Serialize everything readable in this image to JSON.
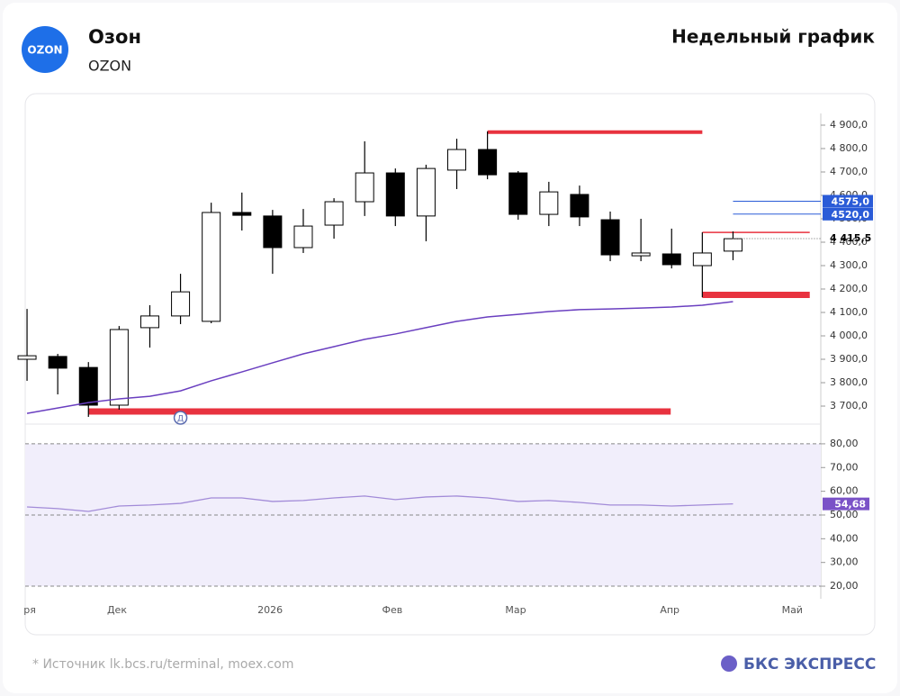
{
  "header": {
    "logo": "OZON",
    "name": "Озон",
    "ticker": "OZON",
    "period": "Недельный график"
  },
  "footer": {
    "source": "* Источник lk.bcs.ru/terminal, moex.com",
    "brand": "БКС ЭКСПРЕСС"
  },
  "chart_data": [
    {
      "type": "candlestick",
      "x": [
        0,
        1,
        2,
        3,
        4,
        5,
        6,
        7,
        8,
        9,
        10,
        11,
        12,
        13,
        14,
        15,
        16,
        17,
        18,
        19,
        20,
        21,
        22,
        23
      ],
      "open": [
        3900,
        3912,
        3865,
        3704,
        4035,
        4085,
        4062,
        4527,
        4512,
        4377,
        4473,
        4573,
        4696,
        4512,
        4708,
        4796,
        4696,
        4519,
        4604,
        4496,
        4342,
        4350,
        4300,
        4362
      ],
      "high": [
        4115,
        3923,
        3888,
        4042,
        4131,
        4265,
        4569,
        4612,
        4538,
        4542,
        4588,
        4831,
        4715,
        4731,
        4842,
        4873,
        4704,
        4658,
        4642,
        4531,
        4500,
        4458,
        4442,
        4446
      ],
      "low": [
        3808,
        3750,
        3654,
        3685,
        3950,
        4050,
        4054,
        4450,
        4265,
        4354,
        4415,
        4512,
        4469,
        4404,
        4627,
        4669,
        4496,
        4469,
        4469,
        4319,
        4319,
        4288,
        4165,
        4323
      ],
      "close": [
        3915,
        3862,
        3704,
        4027,
        4085,
        4188,
        4527,
        4515,
        4377,
        4469,
        4573,
        4696,
        4512,
        4715,
        4796,
        4688,
        4519,
        4615,
        4508,
        4346,
        4354,
        4304,
        4354,
        4415
      ],
      "ma": {
        "color": "#6a3fc0",
        "values": [
          3669,
          3692,
          3715,
          3731,
          3742,
          3765,
          3808,
          3846,
          3885,
          3923,
          3954,
          3985,
          4008,
          4035,
          4062,
          4081,
          4092,
          4104,
          4112,
          4115,
          4119,
          4123,
          4131,
          4146
        ]
      },
      "xlim": [
        -0.06,
        25.86
      ],
      "ylim": [
        3627,
        4950
      ],
      "xticks": [
        {
          "value": 0.09,
          "label": "ря"
        },
        {
          "value": 2.93,
          "label": "Дек"
        },
        {
          "value": 7.92,
          "label": "2026"
        },
        {
          "value": 11.9,
          "label": "Фев"
        },
        {
          "value": 15.92,
          "label": "Мар"
        },
        {
          "value": 20.94,
          "label": "Апр"
        },
        {
          "value": 24.93,
          "label": "Май"
        }
      ],
      "yticks": [
        {
          "value": 4900,
          "label": "4 900,0"
        },
        {
          "value": 4800,
          "label": "4 800,0"
        },
        {
          "value": 4700,
          "label": "4 700,0"
        },
        {
          "value": 4600,
          "label": "4 600,0"
        },
        {
          "value": 4500,
          "label": "4 500,0"
        },
        {
          "value": 4400,
          "label": "4 400,0"
        },
        {
          "value": 4300,
          "label": "4 300,0"
        },
        {
          "value": 4200,
          "label": "4 200,0"
        },
        {
          "value": 4100,
          "label": "4 100,0"
        },
        {
          "value": 4000,
          "label": "4 000,0"
        },
        {
          "value": 3900,
          "label": "3 900,0"
        },
        {
          "value": 3800,
          "label": "3 800,0"
        },
        {
          "value": 3700,
          "label": "3 700,0"
        }
      ],
      "levels": [
        {
          "value": 4870,
          "from": 15,
          "to": 22,
          "color": "#e8323f",
          "width": 4
        },
        {
          "value": 4442,
          "from": 22,
          "to": 25.5,
          "color": "#e8323f",
          "width": 1.5
        },
        {
          "value": 4175,
          "from": 22,
          "to": 25.5,
          "color": "#e8323f",
          "width": 7
        },
        {
          "value": 3677,
          "from": 2,
          "to": 20.97,
          "color": "#e8323f",
          "width": 7
        },
        {
          "value": 4575,
          "from": 23,
          "to": 25.86,
          "color": "#2a5bd7",
          "width": 1,
          "label": "4575,0"
        },
        {
          "value": 4520,
          "from": 23,
          "to": 25.86,
          "color": "#2a5bd7",
          "width": 1,
          "label": "4520,0"
        }
      ],
      "last_price": {
        "value": 4415.5,
        "label": "4 415,5"
      },
      "marker": {
        "x": 5,
        "label": "Д"
      }
    },
    {
      "type": "line",
      "x": [
        0,
        1,
        2,
        3,
        4,
        5,
        6,
        7,
        8,
        9,
        10,
        11,
        12,
        13,
        14,
        15,
        16,
        17,
        18,
        19,
        20,
        21,
        22,
        23
      ],
      "values": [
        53.4,
        52.7,
        51.5,
        53.8,
        54.2,
        54.9,
        57.2,
        57.2,
        55.7,
        56.1,
        57.2,
        58.0,
        56.5,
        57.6,
        58.0,
        57.2,
        55.7,
        56.1,
        55.3,
        54.2,
        54.2,
        53.8,
        54.2,
        54.68
      ],
      "value_labels": [
        null,
        null,
        null,
        null,
        null,
        null,
        null,
        null,
        null,
        null,
        null,
        null,
        null,
        null,
        null,
        null,
        null,
        null,
        null,
        null,
        null,
        null,
        null,
        "54,68"
      ],
      "color": "#a28bd8",
      "xlim": [
        -0.06,
        25.86
      ],
      "ylim": [
        14.7,
        86.8
      ],
      "yticks": [
        {
          "value": 80,
          "label": "80,00"
        },
        {
          "value": 70,
          "label": "70,00"
        },
        {
          "value": 60,
          "label": "60,00"
        },
        {
          "value": 50,
          "label": "50,00"
        },
        {
          "value": 40,
          "label": "40,00"
        },
        {
          "value": 30,
          "label": "30,00"
        },
        {
          "value": 20,
          "label": "20,00"
        }
      ],
      "bands": [
        80,
        50,
        20
      ]
    }
  ]
}
